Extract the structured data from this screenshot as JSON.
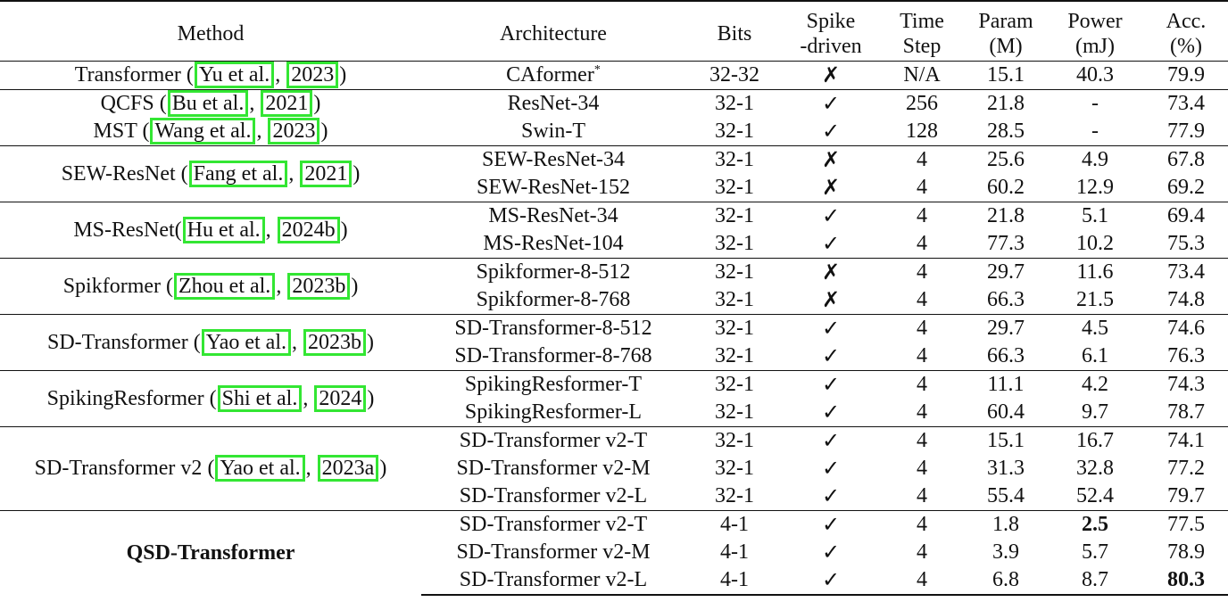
{
  "headers": {
    "method": "Method",
    "architecture": "Architecture",
    "bits": "Bits",
    "spike_1": "Spike",
    "spike_2": "-driven",
    "time_1": "Time",
    "time_2": "Step",
    "param_1": "Param",
    "param_2": "(M)",
    "power_1": "Power",
    "power_2": "(mJ)",
    "acc_1": "Acc.",
    "acc_2": "(%)"
  },
  "groups": [
    {
      "method": "Transformer",
      "cite_author": "Yu et al.",
      "cite_year": "2023",
      "rows": [
        {
          "arch": "CAformer",
          "arch_sup": "*",
          "bits": "32-32",
          "spike": "✗",
          "time": "N/A",
          "param": "15.1",
          "power": "40.3",
          "acc": "79.9"
        }
      ]
    },
    {
      "methods": [
        {
          "method": "QCFS",
          "cite_author": "Bu et al.",
          "cite_year": "2021",
          "row": {
            "arch": "ResNet-34",
            "bits": "32-1",
            "spike": "✓",
            "time": "256",
            "param": "21.8",
            "power": "-",
            "acc": "73.4"
          }
        },
        {
          "method": "MST",
          "cite_author": "Wang et al.",
          "cite_year": "2023",
          "row": {
            "arch": "Swin-T",
            "bits": "32-1",
            "spike": "✓",
            "time": "128",
            "param": "28.5",
            "power": "-",
            "acc": "77.9"
          }
        }
      ]
    },
    {
      "method": "SEW-ResNet",
      "cite_author": "Fang et al.",
      "cite_year": "2021",
      "rows": [
        {
          "arch": "SEW-ResNet-34",
          "bits": "32-1",
          "spike": "✗",
          "time": "4",
          "param": "25.6",
          "power": "4.9",
          "acc": "67.8"
        },
        {
          "arch": "SEW-ResNet-152",
          "bits": "32-1",
          "spike": "✗",
          "time": "4",
          "param": "60.2",
          "power": "12.9",
          "acc": "69.2"
        }
      ]
    },
    {
      "method": "MS-ResNet",
      "cite_author": "Hu et al.",
      "cite_year": "2024b",
      "rows": [
        {
          "arch": "MS-ResNet-34",
          "bits": "32-1",
          "spike": "✓",
          "time": "4",
          "param": "21.8",
          "power": "5.1",
          "acc": "69.4"
        },
        {
          "arch": "MS-ResNet-104",
          "bits": "32-1",
          "spike": "✓",
          "time": "4",
          "param": "77.3",
          "power": "10.2",
          "acc": "75.3"
        }
      ]
    },
    {
      "method": "Spikformer",
      "cite_author": "Zhou et al.",
      "cite_year": "2023b",
      "rows": [
        {
          "arch": "Spikformer-8-512",
          "bits": "32-1",
          "spike": "✗",
          "time": "4",
          "param": "29.7",
          "power": "11.6",
          "acc": "73.4"
        },
        {
          "arch": "Spikformer-8-768",
          "bits": "32-1",
          "spike": "✗",
          "time": "4",
          "param": "66.3",
          "power": "21.5",
          "acc": "74.8"
        }
      ]
    },
    {
      "method": "SD-Transformer",
      "cite_author": "Yao et al.",
      "cite_year": "2023b",
      "rows": [
        {
          "arch": "SD-Transformer-8-512",
          "bits": "32-1",
          "spike": "✓",
          "time": "4",
          "param": "29.7",
          "power": "4.5",
          "acc": "74.6"
        },
        {
          "arch": "SD-Transformer-8-768",
          "bits": "32-1",
          "spike": "✓",
          "time": "4",
          "param": "66.3",
          "power": "6.1",
          "acc": "76.3"
        }
      ]
    },
    {
      "method": "SpikingResformer",
      "cite_author": "Shi et al.",
      "cite_year": "2024",
      "rows": [
        {
          "arch": "SpikingResformer-T",
          "bits": "32-1",
          "spike": "✓",
          "time": "4",
          "param": "11.1",
          "power": "4.2",
          "acc": "74.3"
        },
        {
          "arch": "SpikingResformer-L",
          "bits": "32-1",
          "spike": "✓",
          "time": "4",
          "param": "60.4",
          "power": "9.7",
          "acc": "78.7"
        }
      ]
    },
    {
      "method": "SD-Transformer v2",
      "cite_author": "Yao et al.",
      "cite_year": "2023a",
      "rows": [
        {
          "arch": "SD-Transformer v2-T",
          "bits": "32-1",
          "spike": "✓",
          "time": "4",
          "param": "15.1",
          "power": "16.7",
          "acc": "74.1"
        },
        {
          "arch": "SD-Transformer v2-M",
          "bits": "32-1",
          "spike": "✓",
          "time": "4",
          "param": "31.3",
          "power": "32.8",
          "acc": "77.2"
        },
        {
          "arch": "SD-Transformer v2-L",
          "bits": "32-1",
          "spike": "✓",
          "time": "4",
          "param": "55.4",
          "power": "52.4",
          "acc": "79.7"
        }
      ]
    },
    {
      "method": "QSD-Transformer",
      "rows": [
        {
          "arch": "SD-Transformer v2-T",
          "bits": "4-1",
          "spike": "✓",
          "time": "4",
          "param": "1.8",
          "power": "2.5",
          "acc": "77.5"
        },
        {
          "arch": "SD-Transformer v2-M",
          "bits": "4-1",
          "spike": "✓",
          "time": "4",
          "param": "3.9",
          "power": "5.7",
          "acc": "78.9"
        },
        {
          "arch": "SD-Transformer v2-L",
          "bits": "4-1",
          "spike": "✓",
          "time": "4",
          "param": "6.8",
          "power": "8.7",
          "acc": "80.3"
        }
      ]
    }
  ],
  "colors": {
    "citation_box": "#33e633",
    "text": "#111111",
    "background": "#ffffff"
  }
}
